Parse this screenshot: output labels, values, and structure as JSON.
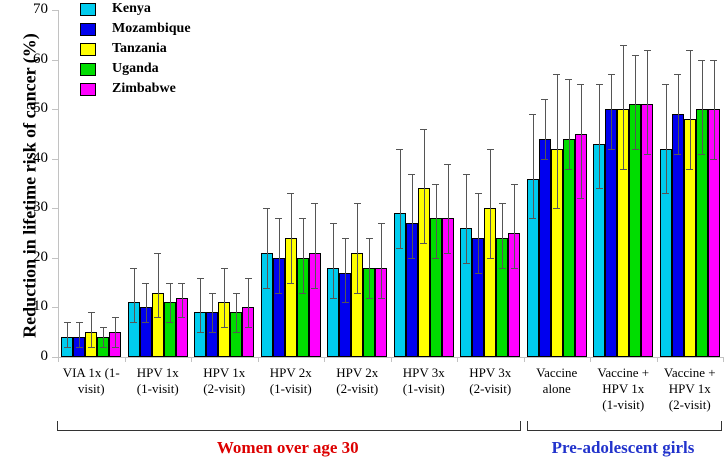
{
  "chart_data": {
    "type": "bar",
    "title": "",
    "xlabel": "",
    "ylabel": "Reduction in lifetime risk of cancer (%)",
    "ylim": [
      0,
      70
    ],
    "yticks": [
      0,
      10,
      20,
      30,
      40,
      50,
      60,
      70
    ],
    "grid": false,
    "legend_position": "top-left",
    "error_bars": true,
    "categories": [
      "VIA 1x (1-\nvisit)",
      "HPV 1x\n(1-visit)",
      "HPV 1x\n(2-visit)",
      "HPV 2x\n(1-visit)",
      "HPV 2x\n(2-visit)",
      "HPV 3x\n(1-visit)",
      "HPV 3x\n(2-visit)",
      "Vaccine\nalone",
      "Vaccine +\nHPV 1x\n(1-visit)",
      "Vaccine +\nHPV 1x\n(2-visit)"
    ],
    "series": [
      {
        "name": "Kenya",
        "color": "#00CCEE",
        "values": [
          4,
          11,
          9,
          21,
          18,
          29,
          26,
          36,
          43,
          42
        ],
        "err_high": [
          7,
          18,
          16,
          30,
          27,
          42,
          37,
          49,
          55,
          55
        ],
        "err_low": [
          2,
          7,
          5,
          14,
          12,
          22,
          19,
          28,
          34,
          33
        ]
      },
      {
        "name": "Mozambique",
        "color": "#0000EE",
        "values": [
          4,
          10,
          9,
          20,
          17,
          27,
          24,
          44,
          50,
          49
        ],
        "err_high": [
          7,
          15,
          13,
          28,
          24,
          37,
          33,
          52,
          57,
          57
        ],
        "err_low": [
          2,
          7,
          5,
          13,
          11,
          20,
          17,
          40,
          42,
          41
        ]
      },
      {
        "name": "Tanzania",
        "color": "#FFFF00",
        "values": [
          5,
          13,
          11,
          24,
          21,
          34,
          30,
          42,
          50,
          48
        ],
        "err_high": [
          9,
          21,
          18,
          33,
          31,
          46,
          42,
          57,
          63,
          62
        ],
        "err_low": [
          2,
          8,
          6,
          15,
          13,
          23,
          20,
          30,
          38,
          38
        ]
      },
      {
        "name": "Uganda",
        "color": "#00DD00",
        "values": [
          4,
          11,
          9,
          20,
          18,
          28,
          24,
          44,
          51,
          50
        ],
        "err_high": [
          6,
          15,
          13,
          28,
          24,
          35,
          31,
          56,
          61,
          60
        ],
        "err_low": [
          2,
          7,
          5,
          13,
          12,
          20,
          18,
          38,
          42,
          41
        ]
      },
      {
        "name": "Zimbabwe",
        "color": "#FF00FF",
        "values": [
          5,
          12,
          10,
          21,
          18,
          28,
          25,
          45,
          51,
          50
        ],
        "err_high": [
          8,
          15,
          16,
          31,
          27,
          39,
          35,
          55,
          62,
          60
        ],
        "err_low": [
          2,
          8,
          6,
          14,
          12,
          21,
          18,
          32,
          41,
          40
        ]
      }
    ],
    "group_annotations": [
      {
        "label": "Women over age 30",
        "color": "#DD0000",
        "from_category": 0,
        "to_category": 6
      },
      {
        "label": "Pre-adolescent girls",
        "color": "#2233CC",
        "from_category": 7,
        "to_category": 9
      }
    ],
    "axis_color": "#C2C2C2",
    "whisker_color": "#555555",
    "bar_outline_color": "#000000"
  }
}
